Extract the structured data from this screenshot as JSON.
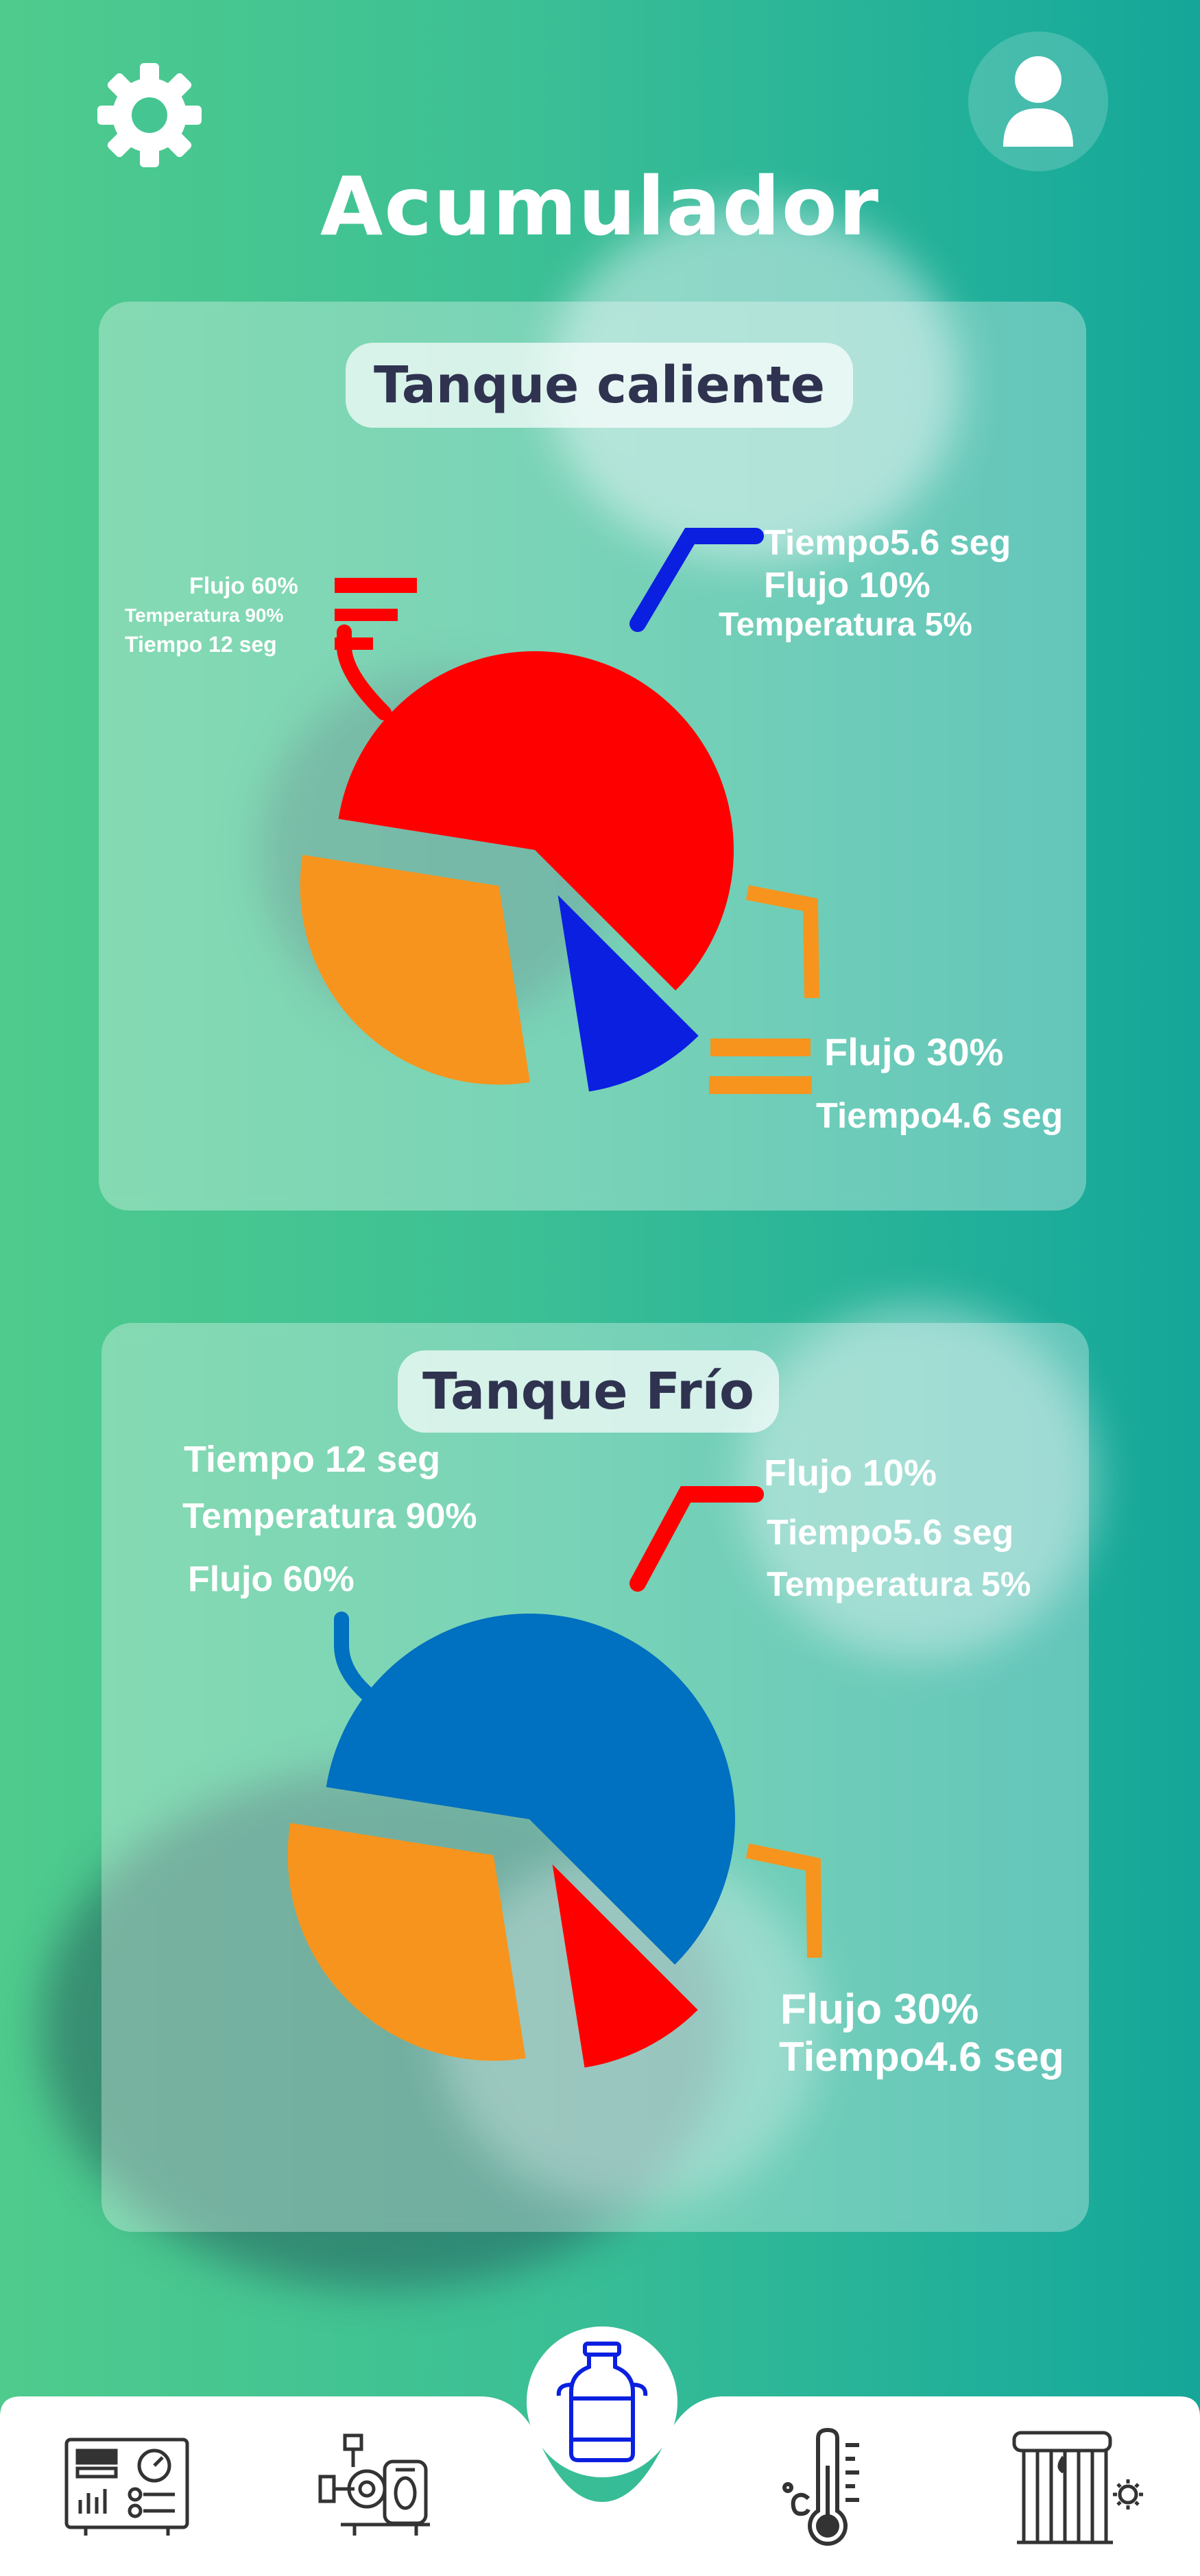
{
  "header": {
    "title": "Acumulador",
    "settings_icon": "gear-icon",
    "profile_icon": "user-icon"
  },
  "colors": {
    "background_start": "#4fcb8d",
    "background_end": "#16a699",
    "title_text": "#2f3350",
    "red": "#ff0000",
    "blue_dark": "#0a1fe0",
    "orange": "#f7941d",
    "blue_light": "#0070c0"
  },
  "tanks": [
    {
      "title": "Tanque caliente",
      "labels": {
        "large_slice": [
          "Flujo 60%",
          "Temperatura 90%",
          "Tiempo 12 seg"
        ],
        "top_slice": [
          "Tiempo5.6 seg",
          "Flujo 10%",
          "Temperatura 5%"
        ],
        "right_slice": [
          "Flujo 30%",
          "Tiempo4.6 seg"
        ]
      }
    },
    {
      "title": "Tanque Frío",
      "labels": {
        "large_slice": [
          "Tiempo 12 seg",
          "Temperatura 90%",
          "Flujo 60%"
        ],
        "top_slice": [
          "Flujo 10%",
          "Tiempo5.6 seg",
          "Temperatura 5%"
        ],
        "right_slice": [
          "Flujo 30%",
          "Tiempo4.6 seg"
        ]
      }
    }
  ],
  "chart_data": [
    {
      "type": "pie",
      "title": "Tanque caliente",
      "categories": [
        "Flujo 60%",
        "Flujo 10%",
        "Flujo 30%"
      ],
      "values": [
        60,
        10,
        30
      ],
      "colors": [
        "#ff0000",
        "#0a1fe0",
        "#f7941d"
      ]
    },
    {
      "type": "pie",
      "title": "Tanque Frío",
      "categories": [
        "Flujo 60%",
        "Flujo 10%",
        "Flujo 30%"
      ],
      "values": [
        60,
        10,
        30
      ],
      "colors": [
        "#0070c0",
        "#ff0000",
        "#f7941d"
      ]
    }
  ],
  "bottom_nav": {
    "items": [
      {
        "icon": "control-panel-icon"
      },
      {
        "icon": "pump-icon"
      },
      {
        "icon": "milk-tank-icon",
        "active": true
      },
      {
        "icon": "thermometer-icon"
      },
      {
        "icon": "solar-heater-icon"
      }
    ]
  }
}
